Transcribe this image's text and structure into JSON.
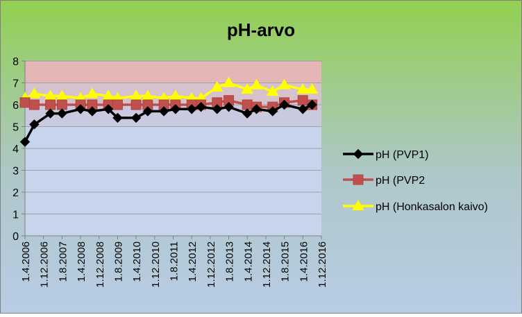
{
  "chart_data": {
    "type": "line",
    "title": "pH-arvo",
    "xlabel": "",
    "ylabel": "",
    "ylim": [
      0,
      8
    ],
    "yticks": [
      0,
      1,
      2,
      3,
      4,
      5,
      6,
      7,
      8
    ],
    "x_tick_labels": [
      "1.4.2006",
      "1.12.2006",
      "1.8.2007",
      "1.4.2008",
      "1.12.2008",
      "1.8.2009",
      "1.4.2010",
      "1.12.2010",
      "1.8.2011",
      "1.4.2012",
      "1.12.2012",
      "1.8.2013",
      "1.4.2014",
      "1.12.2014",
      "1.8.2015",
      "1.4.2016",
      "1.12.2016"
    ],
    "x_range": [
      "2006-04-01",
      "2016-12-01"
    ],
    "grid": true,
    "legend_position": "right",
    "background_bands": [
      {
        "from": 7,
        "to": 8,
        "color": "#e6b5b5"
      },
      {
        "from": 6,
        "to": 7,
        "color": "#d6c2cd"
      },
      {
        "from": 5,
        "to": 6,
        "color": "#c9c9df"
      },
      {
        "from": 0,
        "to": 5,
        "color": "#c6d4ec"
      }
    ],
    "series": [
      {
        "name": "pH (PVP1)",
        "color": "#000000",
        "marker": "diamond",
        "points": [
          {
            "x": "2006-04-01",
            "y": 4.3
          },
          {
            "x": "2006-08-01",
            "y": 5.1
          },
          {
            "x": "2007-03-01",
            "y": 5.6
          },
          {
            "x": "2007-08-01",
            "y": 5.6
          },
          {
            "x": "2008-04-01",
            "y": 5.8
          },
          {
            "x": "2008-09-01",
            "y": 5.7
          },
          {
            "x": "2009-04-01",
            "y": 5.8
          },
          {
            "x": "2009-08-01",
            "y": 5.4
          },
          {
            "x": "2010-04-01",
            "y": 5.4
          },
          {
            "x": "2010-09-01",
            "y": 5.7
          },
          {
            "x": "2011-04-01",
            "y": 5.7
          },
          {
            "x": "2011-09-01",
            "y": 5.8
          },
          {
            "x": "2012-04-01",
            "y": 5.8
          },
          {
            "x": "2012-08-01",
            "y": 5.9
          },
          {
            "x": "2013-03-01",
            "y": 5.8
          },
          {
            "x": "2013-08-01",
            "y": 5.9
          },
          {
            "x": "2014-04-01",
            "y": 5.6
          },
          {
            "x": "2014-08-01",
            "y": 5.8
          },
          {
            "x": "2015-03-01",
            "y": 5.7
          },
          {
            "x": "2015-08-01",
            "y": 6.0
          },
          {
            "x": "2016-04-01",
            "y": 5.8
          },
          {
            "x": "2016-08-01",
            "y": 6.0
          }
        ]
      },
      {
        "name": "pH (PVP2",
        "color": "#c0504d",
        "marker": "square",
        "points": [
          {
            "x": "2006-04-01",
            "y": 6.1
          },
          {
            "x": "2006-08-01",
            "y": 6.0
          },
          {
            "x": "2007-03-01",
            "y": 6.0
          },
          {
            "x": "2007-08-01",
            "y": 6.0
          },
          {
            "x": "2008-04-01",
            "y": 6.0
          },
          {
            "x": "2008-09-01",
            "y": 6.0
          },
          {
            "x": "2009-04-01",
            "y": 6.0
          },
          {
            "x": "2009-08-01",
            "y": 6.0
          },
          {
            "x": "2010-04-01",
            "y": 6.0
          },
          {
            "x": "2010-09-01",
            "y": 6.0
          },
          {
            "x": "2011-04-01",
            "y": 6.0
          },
          {
            "x": "2011-09-01",
            "y": 6.0
          },
          {
            "x": "2012-04-01",
            "y": 6.0
          },
          {
            "x": "2012-08-01",
            "y": 6.0
          },
          {
            "x": "2013-03-01",
            "y": 6.1
          },
          {
            "x": "2013-08-01",
            "y": 6.2
          },
          {
            "x": "2014-04-01",
            "y": 6.0
          },
          {
            "x": "2014-08-01",
            "y": 5.9
          },
          {
            "x": "2015-03-01",
            "y": 5.9
          },
          {
            "x": "2015-08-01",
            "y": 6.1
          },
          {
            "x": "2016-04-01",
            "y": 6.2
          },
          {
            "x": "2016-08-01",
            "y": 6.0
          }
        ]
      },
      {
        "name": "pH (Honkasalon kaivo)",
        "color": "#ffff00",
        "marker": "triangle",
        "points": [
          {
            "x": "2006-04-01",
            "y": 6.3
          },
          {
            "x": "2006-08-01",
            "y": 6.5
          },
          {
            "x": "2007-03-01",
            "y": 6.4
          },
          {
            "x": "2007-08-01",
            "y": 6.4
          },
          {
            "x": "2008-04-01",
            "y": 6.3
          },
          {
            "x": "2008-09-01",
            "y": 6.5
          },
          {
            "x": "2009-04-01",
            "y": 6.4
          },
          {
            "x": "2009-08-01",
            "y": 6.3
          },
          {
            "x": "2010-04-01",
            "y": 6.4
          },
          {
            "x": "2010-09-01",
            "y": 6.4
          },
          {
            "x": "2011-04-01",
            "y": 6.3
          },
          {
            "x": "2011-09-01",
            "y": 6.4
          },
          {
            "x": "2012-04-01",
            "y": 6.3
          },
          {
            "x": "2012-08-01",
            "y": 6.3
          },
          {
            "x": "2013-03-01",
            "y": 6.8
          },
          {
            "x": "2013-08-01",
            "y": 7.0
          },
          {
            "x": "2014-04-01",
            "y": 6.7
          },
          {
            "x": "2014-08-01",
            "y": 6.9
          },
          {
            "x": "2015-03-01",
            "y": 6.6
          },
          {
            "x": "2015-08-01",
            "y": 6.9
          },
          {
            "x": "2016-04-01",
            "y": 6.7
          },
          {
            "x": "2016-08-01",
            "y": 6.7
          }
        ]
      }
    ],
    "colors": {
      "background_top": "#92d050",
      "background_bottom": "#b8cce4",
      "grid": "#a0a0a0",
      "text": "#000000"
    }
  }
}
